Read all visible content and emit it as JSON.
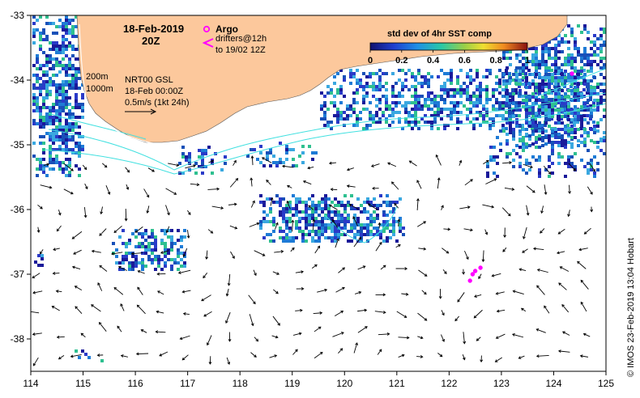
{
  "map": {
    "date_title": "18-Feb-2019",
    "time_title": "20Z",
    "depth_contours": [
      "200m",
      "1000m"
    ],
    "model_label": "NRT00 GSL",
    "model_time": "18-Feb 00:00Z",
    "speed_scale_label": "0.5m/s (1kt 24h)",
    "credit": "© IMOS 23-Feb-2019 13:04 Hobart"
  },
  "legend": {
    "argo_label": "Argo",
    "drifter_label": "drifters@12h",
    "drifter_range": "to 19/02 12Z",
    "colorbar_title": "std dev of 4hr SST comp",
    "colorbar_ticks": [
      "0",
      "0.2",
      "0.4",
      "0.6",
      "0.8",
      "1"
    ]
  },
  "axes": {
    "longitudes": [
      "114",
      "115",
      "116",
      "117",
      "118",
      "119",
      "120",
      "121",
      "122",
      "123",
      "124",
      "125"
    ],
    "latitudes": [
      "-33",
      "-34",
      "-35",
      "-36",
      "-37",
      "-38"
    ]
  },
  "colors": {
    "land": "#fcc89c",
    "argo": "#ff00ff",
    "current_contour": "#40e0e0",
    "sst_low": "#1a1a9a",
    "sst_mid": "#1e7bd6",
    "sst_high": "#2fc090"
  },
  "observations": {
    "argo_float_positions": [
      {
        "lon": 122.4,
        "lat": -37.1
      },
      {
        "lon": 122.45,
        "lat": -37.0
      },
      {
        "lon": 122.5,
        "lat": -36.95
      },
      {
        "lon": 122.6,
        "lat": -36.9
      },
      {
        "lon": 124.35,
        "lat": -33.9
      }
    ]
  }
}
